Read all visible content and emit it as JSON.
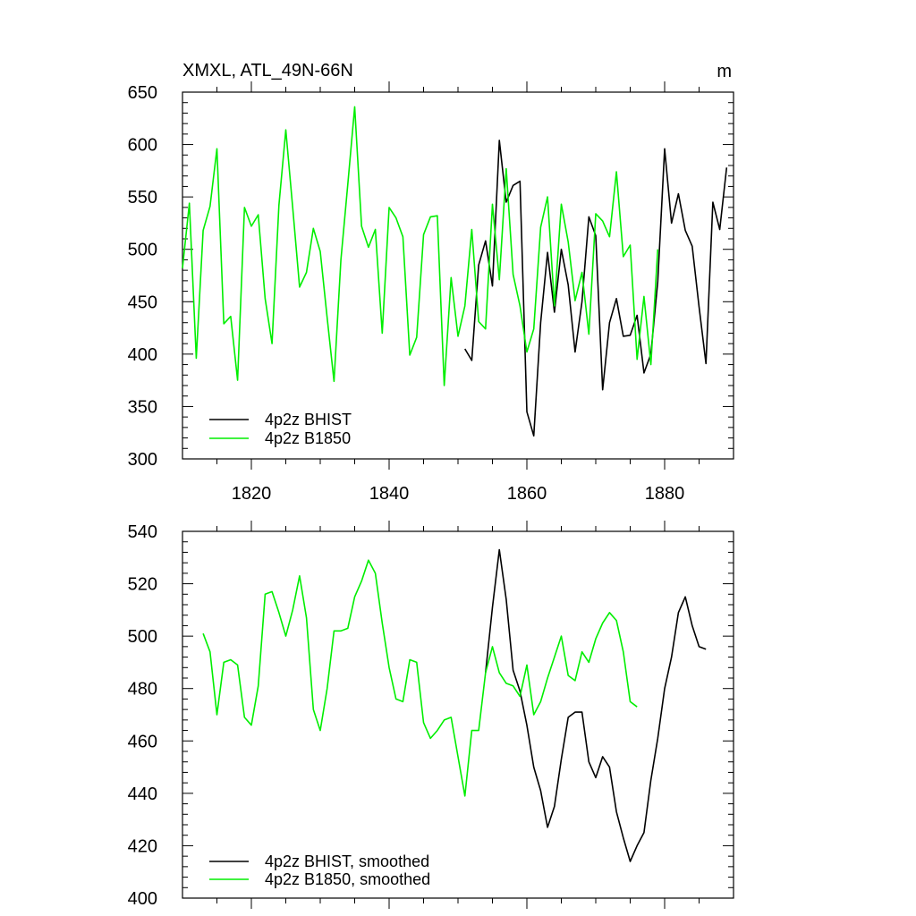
{
  "title_left": "XMXL, ATL_49N-66N",
  "title_right": "m",
  "colors": {
    "bhist": "#000000",
    "b1850": "#00ee00",
    "axis": "#000000"
  },
  "chart_data": [
    {
      "type": "line",
      "xlim": [
        1810,
        1890
      ],
      "ylim": [
        300,
        650
      ],
      "yticks": [
        300,
        350,
        400,
        450,
        500,
        550,
        600,
        650
      ],
      "xticks": [
        1820,
        1840,
        1860,
        1880
      ],
      "show_xtick_labels": true,
      "legend_placement": "bottom-left",
      "series": [
        {
          "name": "4p2z BHIST",
          "color": "#000000",
          "x": [
            1851,
            1852,
            1853,
            1854,
            1855,
            1856,
            1857,
            1858,
            1859,
            1860,
            1861,
            1862,
            1863,
            1864,
            1865,
            1866,
            1867,
            1868,
            1869,
            1870,
            1871,
            1872,
            1873,
            1874,
            1875,
            1876,
            1877,
            1878,
            1879,
            1880,
            1881,
            1882,
            1883,
            1884,
            1885,
            1886,
            1887,
            1888,
            1889
          ],
          "y": [
            405,
            394,
            485,
            508,
            465,
            604,
            545,
            561,
            565,
            345,
            322,
            430,
            497,
            440,
            500,
            466,
            402,
            450,
            531,
            513,
            366,
            430,
            453,
            417,
            418,
            437,
            382,
            400,
            469,
            596,
            525,
            553,
            518,
            503,
            445,
            391,
            545,
            519,
            578
          ]
        },
        {
          "name": "4p2z B1850",
          "color": "#00ee00",
          "x": [
            1810,
            1811,
            1812,
            1813,
            1814,
            1815,
            1816,
            1817,
            1818,
            1819,
            1820,
            1821,
            1822,
            1823,
            1824,
            1825,
            1826,
            1827,
            1828,
            1829,
            1830,
            1831,
            1832,
            1833,
            1834,
            1835,
            1836,
            1837,
            1838,
            1839,
            1840,
            1841,
            1842,
            1843,
            1844,
            1845,
            1846,
            1847,
            1848,
            1849,
            1850,
            1851,
            1852,
            1853,
            1854,
            1855,
            1856,
            1857,
            1858,
            1859,
            1860,
            1861,
            1862,
            1863,
            1864,
            1865,
            1866,
            1867,
            1868,
            1869,
            1870,
            1871,
            1872,
            1873,
            1874,
            1875,
            1876,
            1877,
            1878,
            1879
          ],
          "y": [
            482,
            544,
            396,
            518,
            541,
            596,
            429,
            436,
            375,
            540,
            522,
            533,
            453,
            410,
            542,
            614,
            540,
            464,
            478,
            520,
            498,
            435,
            374,
            490,
            562,
            636,
            522,
            502,
            519,
            420,
            540,
            530,
            512,
            399,
            416,
            514,
            531,
            532,
            370,
            473,
            417,
            446,
            519,
            431,
            424,
            543,
            471,
            577,
            476,
            446,
            402,
            424,
            521,
            550,
            446,
            543,
            507,
            451,
            478,
            419,
            534,
            527,
            512,
            574,
            493,
            504,
            395,
            455,
            390,
            500
          ]
        }
      ]
    },
    {
      "type": "line",
      "xlim": [
        1810,
        1890
      ],
      "ylim": [
        400,
        540
      ],
      "yticks": [
        400,
        420,
        440,
        460,
        480,
        500,
        520,
        540
      ],
      "xticks": [
        1820,
        1840,
        1860,
        1880
      ],
      "show_xtick_labels": false,
      "legend_placement": "bottom-left",
      "series": [
        {
          "name": "4p2z BHIST, smoothed",
          "color": "#000000",
          "x": [
            1854,
            1855,
            1856,
            1857,
            1858,
            1859,
            1860,
            1861,
            1862,
            1863,
            1864,
            1865,
            1866,
            1867,
            1868,
            1869,
            1870,
            1871,
            1872,
            1873,
            1874,
            1875,
            1876,
            1877,
            1878,
            1879,
            1880,
            1881,
            1882,
            1883,
            1884,
            1885,
            1886
          ],
          "y": [
            486,
            511,
            533,
            514,
            487,
            479,
            466,
            450,
            441,
            427,
            435,
            453,
            469,
            471,
            471,
            452,
            446,
            454,
            450,
            433,
            423,
            414,
            420,
            425,
            445,
            461,
            480,
            492,
            509,
            515,
            504,
            496,
            495
          ]
        },
        {
          "name": "4p2z B1850, smoothed",
          "color": "#00ee00",
          "x": [
            1813,
            1814,
            1815,
            1816,
            1817,
            1818,
            1819,
            1820,
            1821,
            1822,
            1823,
            1824,
            1825,
            1826,
            1827,
            1828,
            1829,
            1830,
            1831,
            1832,
            1833,
            1834,
            1835,
            1836,
            1837,
            1838,
            1839,
            1840,
            1841,
            1842,
            1843,
            1844,
            1845,
            1846,
            1847,
            1848,
            1849,
            1850,
            1851,
            1852,
            1853,
            1854,
            1855,
            1856,
            1857,
            1858,
            1859,
            1860,
            1861,
            1862,
            1863,
            1864,
            1865,
            1866,
            1867,
            1868,
            1869,
            1870,
            1871,
            1872,
            1873,
            1874,
            1875,
            1876
          ],
          "y": [
            501,
            494,
            470,
            490,
            491,
            489,
            469,
            466,
            481,
            516,
            517,
            509,
            500,
            510,
            523,
            507,
            472,
            464,
            480,
            502,
            502,
            503,
            515,
            521,
            529,
            524,
            505,
            488,
            476,
            475,
            491,
            490,
            467,
            461,
            464,
            468,
            469,
            454,
            439,
            464,
            464,
            486,
            496,
            486,
            482,
            481,
            477,
            489,
            470,
            475,
            484,
            492,
            500,
            485,
            483,
            494,
            490,
            499,
            505,
            509,
            506,
            494,
            475,
            473
          ]
        }
      ]
    }
  ]
}
